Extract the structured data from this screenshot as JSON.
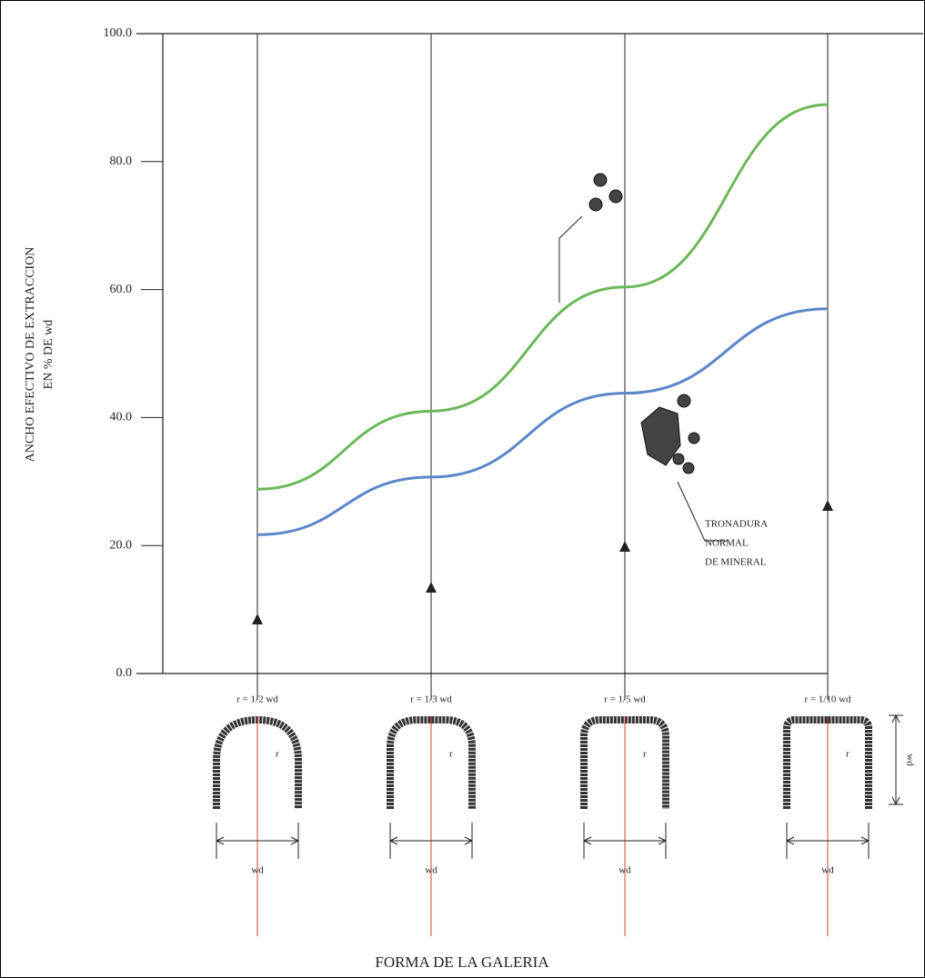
{
  "chart_data": {
    "type": "line",
    "y_label": "ANCHO EFECTIVO DE EXTRACCION",
    "y_label_sub": "EN % DE wd",
    "x_label": "FORMA DE LA GALERIA",
    "categories": [
      "r = 1/2 wd",
      "r = 1/3 wd",
      "r = 1/5 wd",
      "r = 1/10 wd"
    ],
    "series": [
      {
        "color": "#6bb85a",
        "values": [
          28.8,
          41,
          60.4,
          88.9
        ]
      },
      {
        "color": "#5b86c8",
        "values": [
          21.7,
          30.7,
          43.8,
          57
        ]
      }
    ],
    "ylim": [
      0,
      100
    ],
    "yticks": [
      {
        "value": 0,
        "label": "0.0"
      },
      {
        "value": 20,
        "label": "20.0"
      },
      {
        "value": 40,
        "label": "40.0"
      },
      {
        "value": 60,
        "label": "60.0"
      },
      {
        "value": 80,
        "label": "80.0"
      },
      {
        "value": 100,
        "label": "100.0"
      }
    ],
    "annotation": [
      "TRONADURA",
      "NORMAL",
      "DE MINERAL"
    ],
    "radius_label": "r",
    "width_label": "wd",
    "height_label": "wd"
  }
}
